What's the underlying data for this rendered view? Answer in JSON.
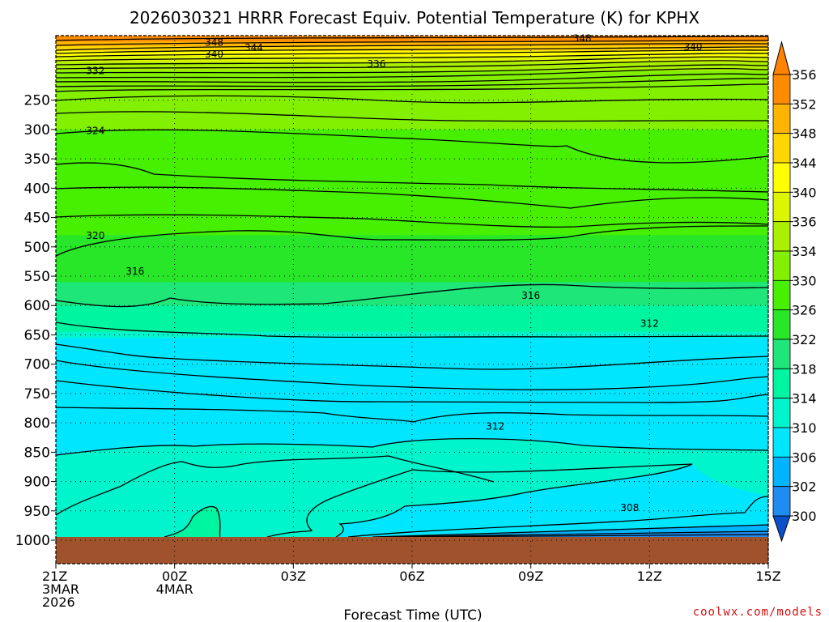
{
  "chart_data": {
    "type": "contour",
    "title": "2026030321 HRRR Forecast Equiv. Potential Temperature (K) for KPHX",
    "xlabel": "Forecast Time (UTC)",
    "ylabel": "",
    "x_ticks": [
      {
        "hour": 0,
        "lines": [
          "21Z",
          "3MAR",
          "2026"
        ]
      },
      {
        "hour": 3,
        "lines": [
          "00Z",
          "4MAR"
        ]
      },
      {
        "hour": 6,
        "lines": [
          "03Z"
        ]
      },
      {
        "hour": 9,
        "lines": [
          "06Z"
        ]
      },
      {
        "hour": 12,
        "lines": [
          "09Z"
        ]
      },
      {
        "hour": 15,
        "lines": [
          "12Z"
        ]
      },
      {
        "hour": 18,
        "lines": [
          "15Z"
        ]
      }
    ],
    "x_range_hours": [
      0,
      18
    ],
    "y_ticks": [
      250,
      300,
      350,
      400,
      450,
      500,
      550,
      600,
      650,
      700,
      750,
      800,
      850,
      900,
      950,
      1000
    ],
    "y_range_hPa": [
      140,
      1040
    ],
    "ground_level_hPa": 965,
    "colorbar": {
      "levels": [
        300,
        302,
        306,
        310,
        314,
        318,
        322,
        326,
        330,
        334,
        336,
        340,
        344,
        348,
        352,
        356
      ],
      "labels": [
        "300",
        "302",
        "306",
        "310",
        "314",
        "318",
        "322",
        "326",
        "330",
        "334",
        "336",
        "340",
        "344",
        "348",
        "352",
        "356"
      ],
      "colors": [
        "#1464e6",
        "#1e8cf0",
        "#00b4ff",
        "#00e6ff",
        "#00f5cd",
        "#00f5a0",
        "#1ee678",
        "#28e628",
        "#46f000",
        "#82f000",
        "#aaf000",
        "#dcf500",
        "#ffff00",
        "#ffd700",
        "#ffb400",
        "#ff8c00"
      ],
      "under_color": "#0a50c8",
      "over_color": "#ff8200"
    },
    "contour_labels": [
      {
        "value": "348",
        "hour": 4.0,
        "hPa": 152
      },
      {
        "value": "348",
        "hour": 13.3,
        "hPa": 145
      },
      {
        "value": "344",
        "hour": 5.0,
        "hPa": 161
      },
      {
        "value": "340",
        "hour": 4.0,
        "hPa": 172
      },
      {
        "value": "340",
        "hour": 16.1,
        "hPa": 159
      },
      {
        "value": "336",
        "hour": 8.1,
        "hPa": 188
      },
      {
        "value": "332",
        "hour": 1.0,
        "hPa": 200
      },
      {
        "value": "324",
        "hour": 1.0,
        "hPa": 302
      },
      {
        "value": "320",
        "hour": 1.0,
        "hPa": 481
      },
      {
        "value": "316",
        "hour": 2.0,
        "hPa": 542
      },
      {
        "value": "316",
        "hour": 12.0,
        "hPa": 583
      },
      {
        "value": "312",
        "hour": 15.0,
        "hPa": 631
      },
      {
        "value": "312",
        "hour": 11.1,
        "hPa": 806
      },
      {
        "value": "308",
        "hour": 14.5,
        "hPa": 945
      }
    ]
  },
  "credit": "coolwx.com/models"
}
